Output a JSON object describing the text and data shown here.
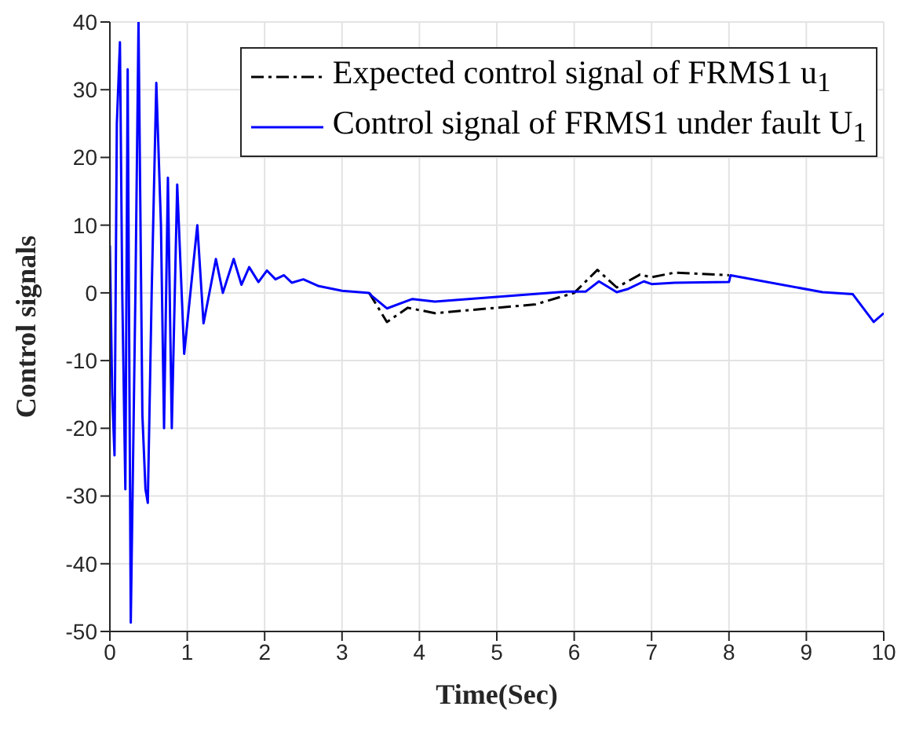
{
  "chart_data": {
    "type": "line",
    "xlabel": "Time(Sec)",
    "ylabel": "Control signals",
    "xlim": [
      0,
      10
    ],
    "xticks": [
      0,
      1,
      2,
      3,
      4,
      5,
      6,
      7,
      8,
      9,
      10
    ],
    "ylim": [
      -50,
      40
    ],
    "yticks": [
      -50,
      -40,
      -30,
      -20,
      -10,
      0,
      10,
      20,
      30,
      40
    ],
    "grid": true,
    "legend": "top right",
    "marker": "none",
    "series": [
      {
        "name": "Expected control signal of FRMS1 u$_{1}$",
        "color": "#000000",
        "line_style": "dashdot",
        "x": [
          3.35,
          3.58,
          3.85,
          4.2,
          5.5,
          6.0,
          6.3,
          6.55,
          6.85,
          7.0,
          7.3,
          8.0
        ],
        "values": [
          0,
          -4.3,
          -2.2,
          -3,
          -1.7,
          0,
          3.4,
          0.8,
          2.7,
          2.3,
          3,
          2.6
        ]
      },
      {
        "name": "Control signal of FRMS1 under fault U$_{1}$",
        "color": "#0000ff",
        "line_style": "solid",
        "x": [
          0,
          0.03,
          0.06,
          0.09,
          0.13,
          0.16,
          0.2,
          0.23,
          0.27,
          0.33,
          0.37,
          0.42,
          0.46,
          0.49,
          0.54,
          0.6,
          0.66,
          0.7,
          0.75,
          0.8,
          0.87,
          0.96,
          1.13,
          1.21,
          1.37,
          1.46,
          1.6,
          1.7,
          1.8,
          1.92,
          2.03,
          2.14,
          2.25,
          2.35,
          2.5,
          2.7,
          3.0,
          3.35,
          3.38,
          3.58,
          3.91,
          4.2,
          5.9,
          6.15,
          6.32,
          6.55,
          6.7,
          6.9,
          7.0,
          7.3,
          8.0,
          8.02,
          9.21,
          9.6,
          9.87,
          10
        ],
        "values": [
          7,
          -15,
          -24,
          25,
          37,
          0,
          -29,
          33,
          -48.7,
          0,
          40,
          -18,
          -29,
          -31,
          0,
          31,
          10,
          -20,
          17,
          -20,
          16,
          -9,
          10,
          -4.5,
          5,
          0,
          5,
          1.2,
          3.8,
          1.6,
          3.3,
          2,
          2.6,
          1.5,
          2,
          1,
          0.3,
          0,
          -0.4,
          -2.3,
          -0.9,
          -1.3,
          0.2,
          0.2,
          1.7,
          0.1,
          0.6,
          1.7,
          1.3,
          1.5,
          1.6,
          2.6,
          0.1,
          -0.2,
          -4.3,
          -3
        ]
      }
    ]
  }
}
